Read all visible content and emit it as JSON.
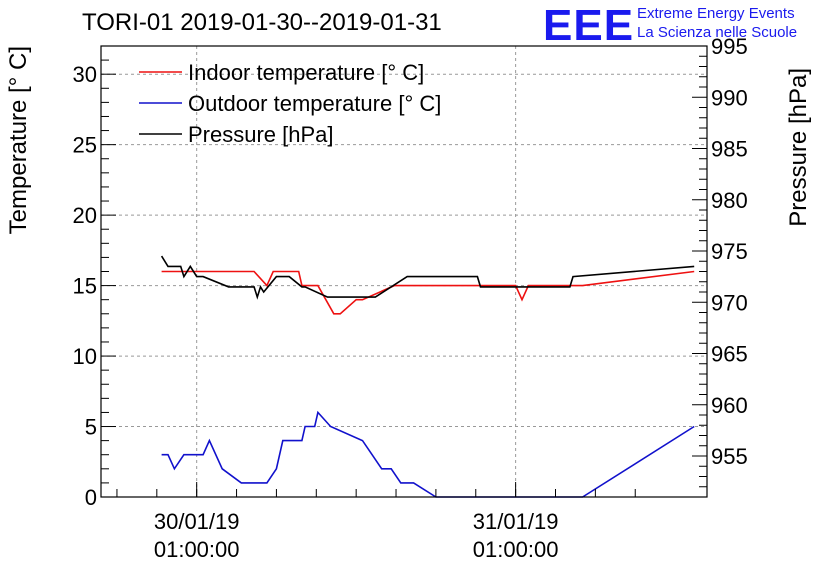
{
  "chart_data": {
    "type": "line",
    "title": "TORI-01 2019-01-30--2019-01-31",
    "ylabel": "Temperature [° C]",
    "ylabel_right": "Pressure [hPa]",
    "ylim": [
      0,
      32
    ],
    "ylim_right": [
      951,
      995
    ],
    "xlim": [
      -0.3,
      1.6
    ],
    "y_ticks": [
      0,
      5,
      10,
      15,
      20,
      25,
      30
    ],
    "y_ticks_right": [
      955,
      960,
      965,
      970,
      975,
      980,
      985,
      990,
      995
    ],
    "x_ticks": [
      {
        "x": 0,
        "date": "30/01/19",
        "time": "01:00:00"
      },
      {
        "x": 1,
        "date": "31/01/19",
        "time": "01:00:00"
      }
    ],
    "grid": true,
    "legend_position": "top-left",
    "series": [
      {
        "name": "Indoor temperature [° C]",
        "color": "#ee1111",
        "axis": "left",
        "x": [
          -0.11,
          0.18,
          0.22,
          0.24,
          0.32,
          0.33,
          0.38,
          0.43,
          0.45,
          0.5,
          0.52,
          0.62,
          0.64,
          1.0,
          1.02,
          1.04,
          1.21,
          1.56
        ],
        "values": [
          16,
          16,
          15,
          16,
          16,
          15,
          15,
          13,
          13,
          14,
          14,
          15,
          15,
          15,
          14,
          15,
          15,
          16
        ]
      },
      {
        "name": "Outdoor temperature [° C]",
        "color": "#1111cc",
        "axis": "left",
        "x": [
          -0.11,
          -0.09,
          -0.07,
          -0.04,
          0.02,
          0.04,
          0.08,
          0.14,
          0.22,
          0.25,
          0.27,
          0.33,
          0.34,
          0.37,
          0.38,
          0.42,
          0.52,
          0.55,
          0.58,
          0.61,
          0.64,
          0.68,
          0.75,
          0.78,
          1.21,
          1.56
        ],
        "values": [
          3,
          3,
          2,
          3,
          3,
          4,
          2,
          1,
          1,
          2,
          4,
          4,
          5,
          5,
          6,
          5,
          4,
          3,
          2,
          2,
          1,
          1,
          0,
          0,
          0,
          5
        ]
      },
      {
        "name": "Pressure [hPa]",
        "color": "#000000",
        "axis": "right",
        "x": [
          -0.11,
          -0.09,
          -0.05,
          -0.04,
          -0.02,
          0.0,
          0.02,
          0.1,
          0.18,
          0.19,
          0.2,
          0.21,
          0.25,
          0.29,
          0.33,
          0.34,
          0.41,
          0.44,
          0.52,
          0.56,
          0.66,
          0.67,
          0.88,
          0.89,
          1.17,
          1.18,
          1.56
        ],
        "values": [
          974.5,
          973.5,
          973.5,
          972.5,
          973.5,
          972.5,
          972.5,
          971.5,
          971.5,
          970.5,
          971.5,
          971.0,
          972.5,
          972.5,
          971.5,
          971.5,
          970.5,
          970.5,
          970.5,
          970.5,
          972.5,
          972.5,
          972.5,
          971.5,
          971.5,
          972.5,
          973.5
        ]
      }
    ]
  },
  "logo": {
    "mark": "EEE",
    "line1": "Extreme Energy Events",
    "line2": "La Scienza nelle Scuole",
    "color": "#1a1aee"
  }
}
